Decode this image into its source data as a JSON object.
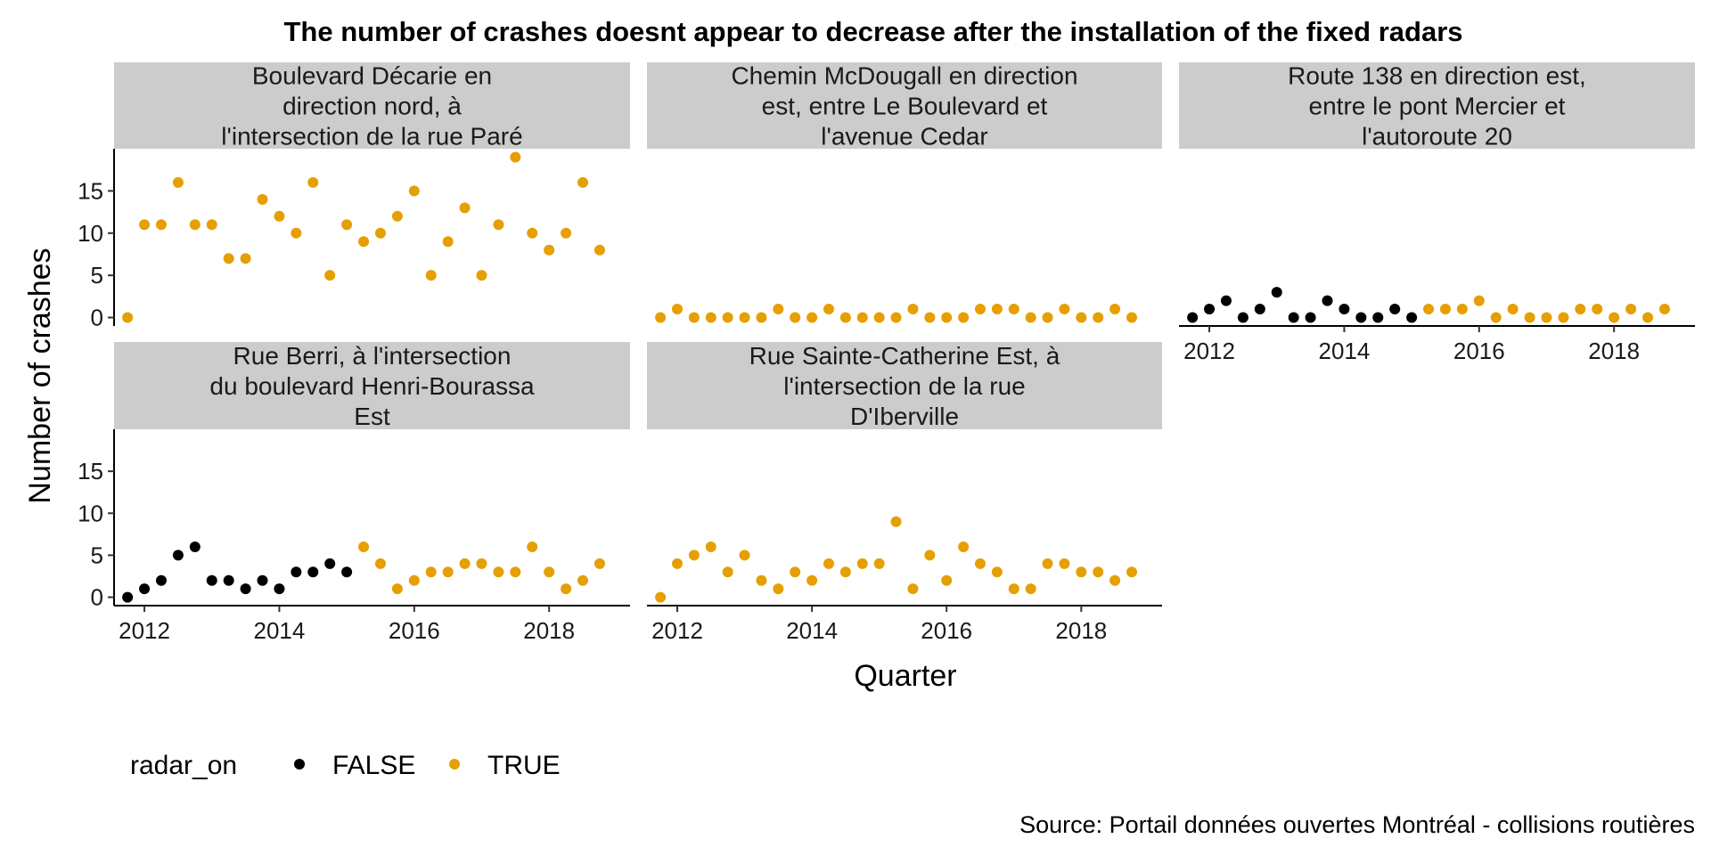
{
  "chart_data": {
    "type": "scatter",
    "title": "The number of crashes doesnt appear to decrease after the installation of the fixed radars",
    "xlabel": "Quarter",
    "ylabel": "Number of crashes",
    "caption": "Source:  Portail données ouvertes Montréal - collisions routières",
    "x_ticks": [
      "2012",
      "2014",
      "2016",
      "2018"
    ],
    "y_ticks": [
      "0",
      "5",
      "10",
      "15"
    ],
    "xlim": [
      2011.55,
      2019.2
    ],
    "ylim": [
      -1,
      20
    ],
    "legend": {
      "title": "radar_on",
      "position": "bottom-left",
      "entries": [
        {
          "label": "FALSE",
          "color": "#000000"
        },
        {
          "label": "TRUE",
          "color": "#E69F00"
        }
      ]
    },
    "colors": {
      "FALSE": "#000000",
      "TRUE": "#E69F00"
    },
    "x_quarters": [
      2011.75,
      2012.0,
      2012.25,
      2012.5,
      2012.75,
      2013.0,
      2013.25,
      2013.5,
      2013.75,
      2014.0,
      2014.25,
      2014.5,
      2014.75,
      2015.0,
      2015.25,
      2015.5,
      2015.75,
      2016.0,
      2016.25,
      2016.5,
      2016.75,
      2017.0,
      2017.25,
      2017.5,
      2017.75,
      2018.0,
      2018.25,
      2018.5,
      2018.75
    ],
    "panels": [
      {
        "strip": [
          "Boulevard Décarie en",
          "direction nord, à",
          "l'intersection de la rue Paré"
        ],
        "values": [
          0,
          11,
          11,
          16,
          11,
          11,
          7,
          7,
          14,
          12,
          10,
          16,
          5,
          11,
          9,
          10,
          12,
          15,
          5,
          9,
          13,
          5,
          11,
          19,
          10,
          8,
          10,
          16,
          8
        ],
        "radar_on": [
          "TRUE",
          "TRUE",
          "TRUE",
          "TRUE",
          "TRUE",
          "TRUE",
          "TRUE",
          "TRUE",
          "TRUE",
          "TRUE",
          "TRUE",
          "TRUE",
          "TRUE",
          "TRUE",
          "TRUE",
          "TRUE",
          "TRUE",
          "TRUE",
          "TRUE",
          "TRUE",
          "TRUE",
          "TRUE",
          "TRUE",
          "TRUE",
          "TRUE",
          "TRUE",
          "TRUE",
          "TRUE",
          "TRUE"
        ]
      },
      {
        "strip": [
          "Chemin McDougall en direction",
          "est, entre Le Boulevard et",
          "l'avenue Cedar"
        ],
        "values": [
          0,
          1,
          0,
          0,
          0,
          0,
          0,
          1,
          0,
          0,
          1,
          0,
          0,
          0,
          0,
          1,
          0,
          0,
          0,
          1,
          1,
          1,
          0,
          0,
          1,
          0,
          0,
          1,
          0
        ],
        "radar_on": [
          "TRUE",
          "TRUE",
          "TRUE",
          "TRUE",
          "TRUE",
          "TRUE",
          "TRUE",
          "TRUE",
          "TRUE",
          "TRUE",
          "TRUE",
          "TRUE",
          "TRUE",
          "TRUE",
          "TRUE",
          "TRUE",
          "TRUE",
          "TRUE",
          "TRUE",
          "TRUE",
          "TRUE",
          "TRUE",
          "TRUE",
          "TRUE",
          "TRUE",
          "TRUE",
          "TRUE",
          "TRUE",
          "TRUE"
        ]
      },
      {
        "strip": [
          "Route 138 en direction est,",
          "entre le pont Mercier et",
          "l'autoroute 20"
        ],
        "values": [
          0,
          1,
          2,
          0,
          1,
          3,
          0,
          0,
          2,
          1,
          0,
          0,
          1,
          0,
          1,
          1,
          1,
          2,
          0,
          1,
          0,
          0,
          0,
          1,
          1,
          0,
          1,
          0,
          1
        ],
        "radar_on": [
          "FALSE",
          "FALSE",
          "FALSE",
          "FALSE",
          "FALSE",
          "FALSE",
          "FALSE",
          "FALSE",
          "FALSE",
          "FALSE",
          "FALSE",
          "FALSE",
          "FALSE",
          "FALSE",
          "TRUE",
          "TRUE",
          "TRUE",
          "TRUE",
          "TRUE",
          "TRUE",
          "TRUE",
          "TRUE",
          "TRUE",
          "TRUE",
          "TRUE",
          "TRUE",
          "TRUE",
          "TRUE",
          "TRUE"
        ]
      },
      {
        "strip": [
          "Rue Berri, à l'intersection",
          "du boulevard Henri-Bourassa",
          "Est"
        ],
        "values": [
          0,
          1,
          2,
          5,
          6,
          2,
          2,
          1,
          2,
          1,
          3,
          3,
          4,
          3,
          6,
          4,
          1,
          2,
          3,
          3,
          4,
          4,
          3,
          3,
          6,
          3,
          1,
          2,
          4
        ],
        "radar_on": [
          "FALSE",
          "FALSE",
          "FALSE",
          "FALSE",
          "FALSE",
          "FALSE",
          "FALSE",
          "FALSE",
          "FALSE",
          "FALSE",
          "FALSE",
          "FALSE",
          "FALSE",
          "FALSE",
          "TRUE",
          "TRUE",
          "TRUE",
          "TRUE",
          "TRUE",
          "TRUE",
          "TRUE",
          "TRUE",
          "TRUE",
          "TRUE",
          "TRUE",
          "TRUE",
          "TRUE",
          "TRUE",
          "TRUE"
        ]
      },
      {
        "strip": [
          "Rue Sainte-Catherine Est, à",
          "l'intersection de la rue",
          "D'Iberville"
        ],
        "values": [
          0,
          4,
          5,
          6,
          3,
          5,
          2,
          1,
          3,
          2,
          4,
          3,
          4,
          4,
          9,
          1,
          5,
          2,
          6,
          4,
          3,
          1,
          1,
          4,
          4,
          3,
          3,
          2,
          3
        ],
        "radar_on": [
          "TRUE",
          "TRUE",
          "TRUE",
          "TRUE",
          "TRUE",
          "TRUE",
          "TRUE",
          "TRUE",
          "TRUE",
          "TRUE",
          "TRUE",
          "TRUE",
          "TRUE",
          "TRUE",
          "TRUE",
          "TRUE",
          "TRUE",
          "TRUE",
          "TRUE",
          "TRUE",
          "TRUE",
          "TRUE",
          "TRUE",
          "TRUE",
          "TRUE",
          "TRUE",
          "TRUE",
          "TRUE",
          "TRUE"
        ]
      }
    ]
  }
}
